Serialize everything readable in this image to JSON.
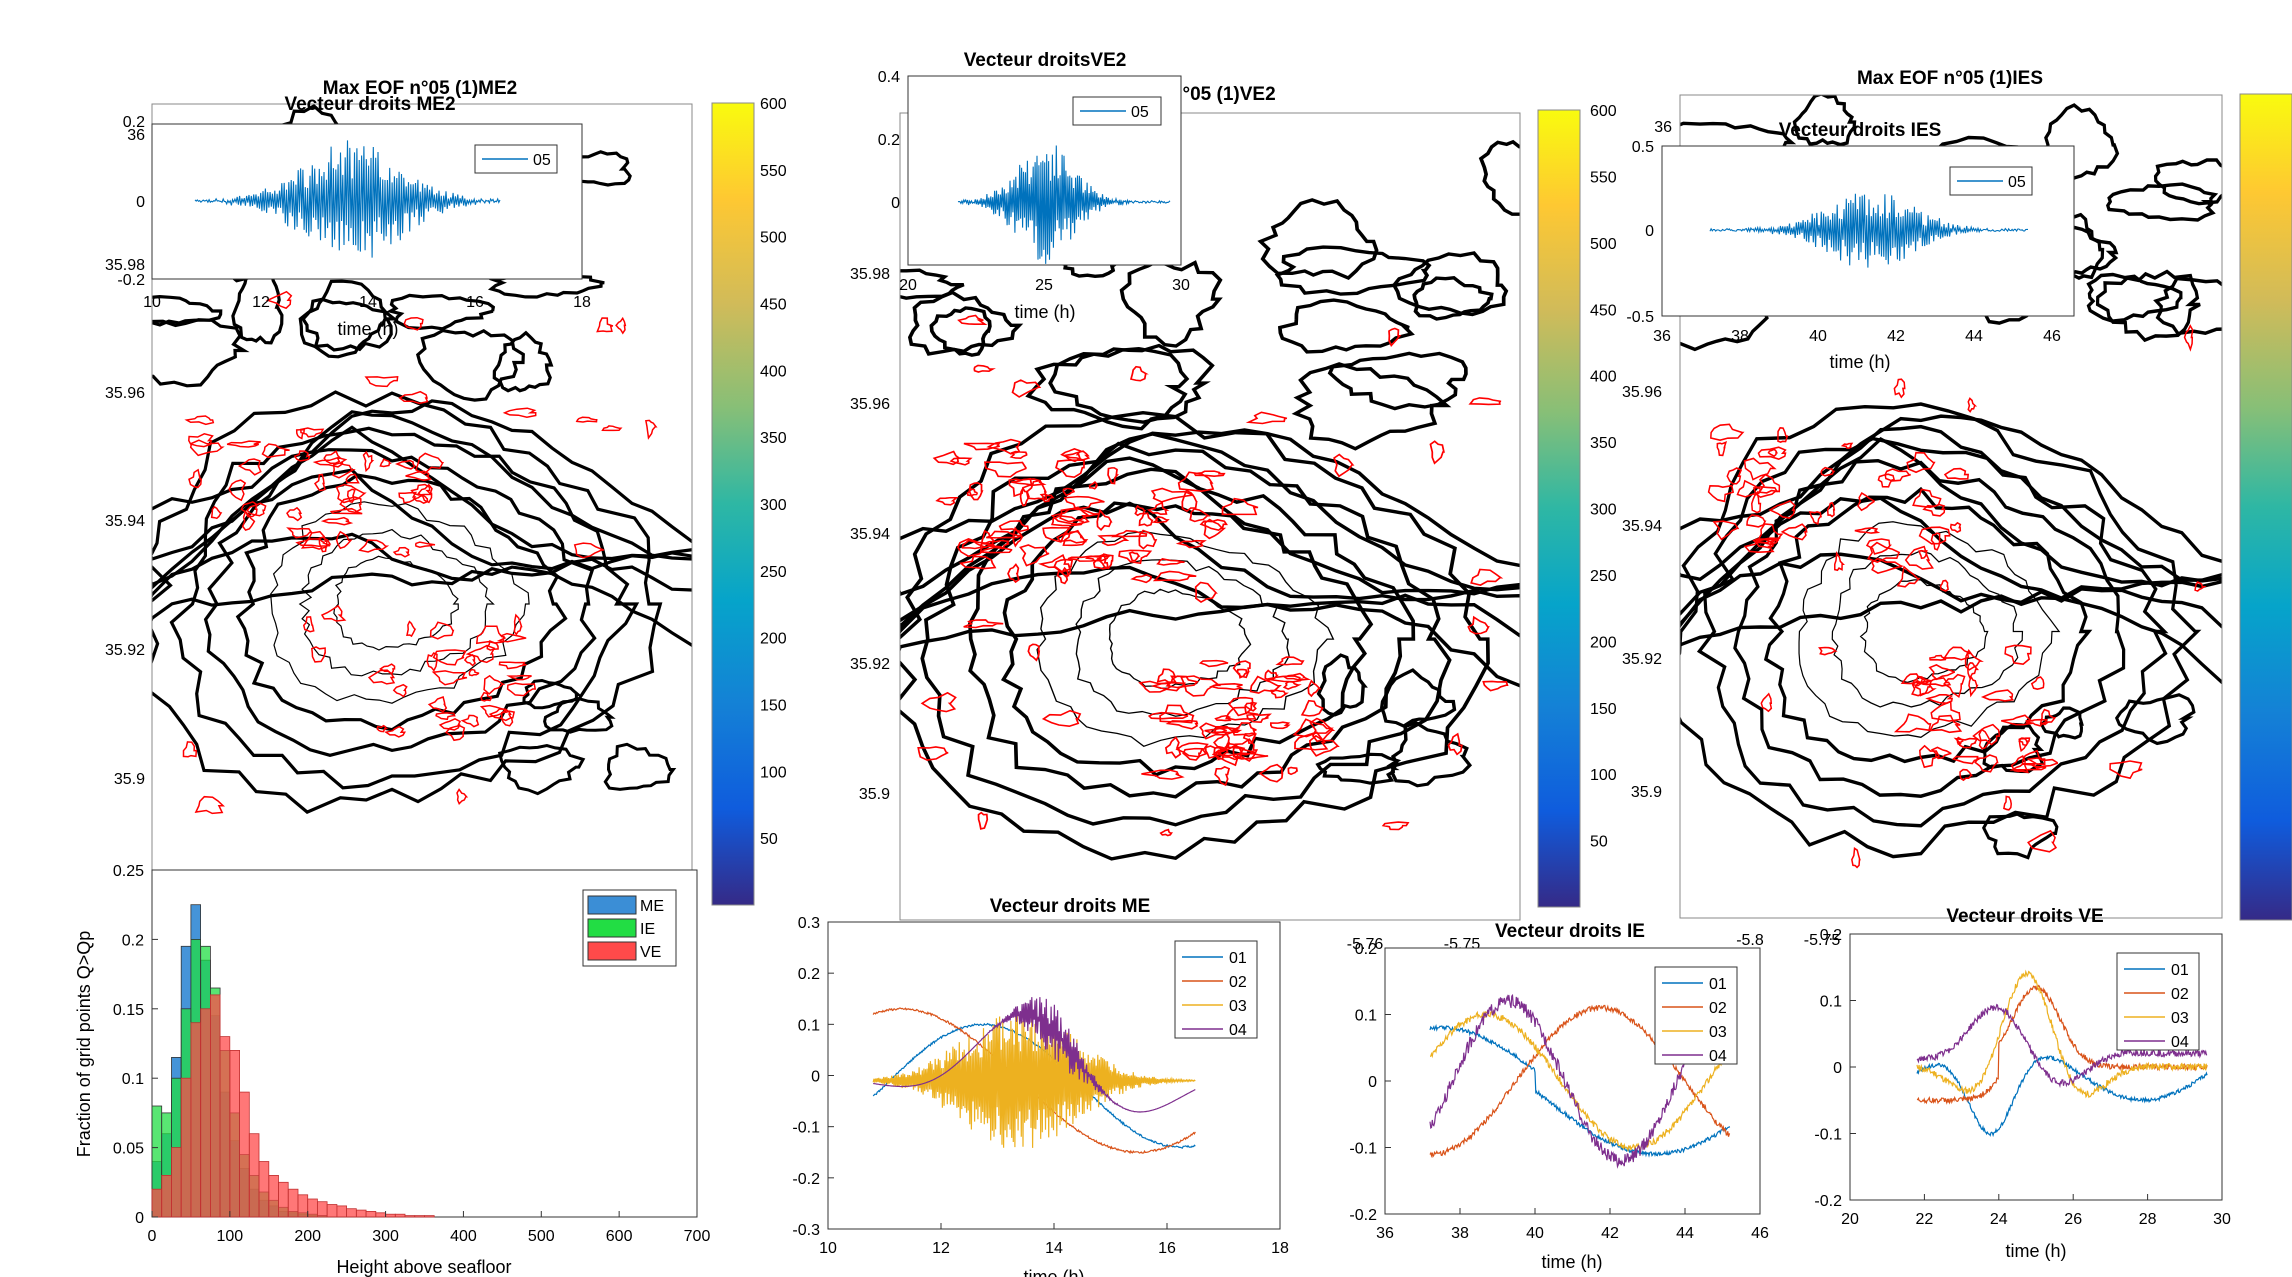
{
  "figure": {
    "colors": {
      "black": "#000000",
      "red": "#ff0000",
      "series1": "#0072bd",
      "series2": "#d95319",
      "series3": "#edb120",
      "series4": "#7e2f8e",
      "me": "#3b8ed6",
      "ie": "#22dd44",
      "ve": "#ff4a4a"
    }
  },
  "chart_data": [
    {
      "id": "map_me",
      "type": "heatmap",
      "title": "Max EOF n°05  (1)ME2",
      "yticks": [
        "35.9",
        "35.92",
        "35.94",
        "35.96",
        "35.98"
      ],
      "xticks": [],
      "colorbar": {
        "colormap": "parula",
        "range": [
          0,
          600
        ],
        "ticks": [
          "50",
          "100",
          "150",
          "200",
          "250",
          "300",
          "350",
          "400",
          "450",
          "500",
          "550",
          "600"
        ]
      },
      "content": "black bathymetry contours with red contours of Q>Qp"
    },
    {
      "id": "inset_me",
      "type": "line",
      "title": "Vecteur droits ME2",
      "xlabel": "time (h)",
      "xticks": [
        "10",
        "12",
        "14",
        "16",
        "18"
      ],
      "yticks": [
        "-0.2",
        "0",
        "0.2"
      ],
      "xlim": [
        10,
        19
      ],
      "ylim": [
        -0.2,
        0.2
      ],
      "legend": [
        "05"
      ],
      "series": [
        {
          "name": "05",
          "center": 13.8,
          "amplitude": 0.17
        }
      ]
    },
    {
      "id": "map_ve",
      "type": "heatmap",
      "title": "Max EOF n°05  (1)VE2",
      "yticks": [
        "35.9",
        "35.92",
        "35.94",
        "35.96",
        "35.98"
      ],
      "xticks": [
        "-5.76",
        "-5.75"
      ],
      "colorbar": {
        "colormap": "parula",
        "range": [
          0,
          600
        ],
        "ticks": [
          "50",
          "100",
          "150",
          "200",
          "250",
          "300",
          "350",
          "400",
          "450",
          "500",
          "550",
          "600"
        ]
      }
    },
    {
      "id": "inset_ve",
      "type": "line",
      "title": "Vecteur droitsVE2",
      "xlabel": "time (h)",
      "xticks": [
        "20",
        "25",
        "30"
      ],
      "yticks": [
        "0",
        "0.2",
        "0.4"
      ],
      "xlim": [
        20,
        30
      ],
      "ylim": [
        -0.2,
        0.4
      ],
      "legend": [
        "05"
      ],
      "series": [
        {
          "name": "05",
          "center": 25,
          "amplitude": 0.17
        }
      ]
    },
    {
      "id": "map_ie",
      "type": "heatmap",
      "title": "Max EOF n°05  (1)IES",
      "yticks": [
        "35.9",
        "35.92",
        "35.94",
        "35.96",
        "36"
      ],
      "xticks": [
        "-5.8",
        "-5.75"
      ],
      "colorbar": {
        "colormap": "parula",
        "range": [
          0,
          600
        ],
        "ticks": []
      }
    },
    {
      "id": "inset_ie",
      "type": "line",
      "title": "Vecteur droits IES",
      "xlabel": "time (h)",
      "xticks": [
        "36",
        "38",
        "40",
        "42",
        "44",
        "46"
      ],
      "yticks": [
        "-0.5",
        "0",
        "0.5"
      ],
      "xlim": [
        36,
        46
      ],
      "ylim": [
        -0.5,
        0.5
      ],
      "legend": [
        "05"
      ],
      "series": [
        {
          "name": "05",
          "center": 41,
          "amplitude": 0.14
        }
      ]
    },
    {
      "id": "hist",
      "type": "bar",
      "xlabel": "Height above seafloor",
      "ylabel": "Fraction of grid points Q>Qp",
      "xlim": [
        0,
        700
      ],
      "ylim": [
        0,
        0.25
      ],
      "xticks": [
        "0",
        "100",
        "200",
        "300",
        "400",
        "500",
        "600",
        "700"
      ],
      "yticks": [
        "0",
        "0.05",
        "0.1",
        "0.15",
        "0.2",
        "0.25"
      ],
      "legend": [
        "ME",
        "IE",
        "VE"
      ],
      "bin_width": 12.5,
      "series": [
        {
          "name": "ME",
          "values": [
            0.04,
            0.06,
            0.115,
            0.195,
            0.225,
            0.185,
            0.145,
            0.09,
            0.055,
            0.035,
            0.02,
            0.012,
            0.008,
            0.004,
            0.003,
            0.002,
            0.001,
            0.001,
            0,
            0,
            0,
            0,
            0,
            0,
            0,
            0,
            0,
            0,
            0
          ]
        },
        {
          "name": "IE",
          "values": [
            0.08,
            0.075,
            0.1,
            0.15,
            0.2,
            0.195,
            0.165,
            0.12,
            0.075,
            0.045,
            0.03,
            0.018,
            0.012,
            0.007,
            0.004,
            0.003,
            0.002,
            0.001,
            0,
            0,
            0,
            0,
            0,
            0,
            0,
            0,
            0,
            0,
            0
          ]
        },
        {
          "name": "VE",
          "values": [
            0.02,
            0.03,
            0.05,
            0.1,
            0.14,
            0.15,
            0.16,
            0.13,
            0.12,
            0.09,
            0.06,
            0.04,
            0.03,
            0.025,
            0.02,
            0.016,
            0.013,
            0.011,
            0.009,
            0.008,
            0.006,
            0.005,
            0.004,
            0.003,
            0.002,
            0.002,
            0.001,
            0.001,
            0.001
          ]
        }
      ]
    },
    {
      "id": "eof_me",
      "type": "line",
      "title": "Vecteur droits ME",
      "xlabel": "time (h)",
      "xlim": [
        10,
        18
      ],
      "ylim": [
        -0.3,
        0.3
      ],
      "xticks": [
        "10",
        "12",
        "14",
        "16",
        "18"
      ],
      "yticks": [
        "-0.3",
        "-0.2",
        "-0.1",
        "0",
        "0.1",
        "0.2",
        "0.3"
      ],
      "legend": [
        "01",
        "02",
        "03",
        "04"
      ]
    },
    {
      "id": "eof_ie",
      "type": "line",
      "title": "Vecteur droits IE",
      "xlabel": "time (h)",
      "xlim": [
        36,
        46
      ],
      "ylim": [
        -0.2,
        0.2
      ],
      "xticks": [
        "36",
        "38",
        "40",
        "42",
        "44",
        "46"
      ],
      "yticks": [
        "-0.2",
        "-0.1",
        "0",
        "0.1",
        "0.2"
      ],
      "legend": [
        "01",
        "02",
        "03",
        "04"
      ]
    },
    {
      "id": "eof_ve",
      "type": "line",
      "title": "Vecteur droits VE",
      "xlabel": "time (h)",
      "xlim": [
        20,
        30
      ],
      "ylim": [
        -0.2,
        0.2
      ],
      "xticks": [
        "20",
        "22",
        "24",
        "26",
        "28",
        "30"
      ],
      "yticks": [
        "-0.2",
        "-0.1",
        "0",
        "0.1",
        "0.2"
      ],
      "legend": [
        "01",
        "02",
        "03",
        "04"
      ]
    }
  ]
}
